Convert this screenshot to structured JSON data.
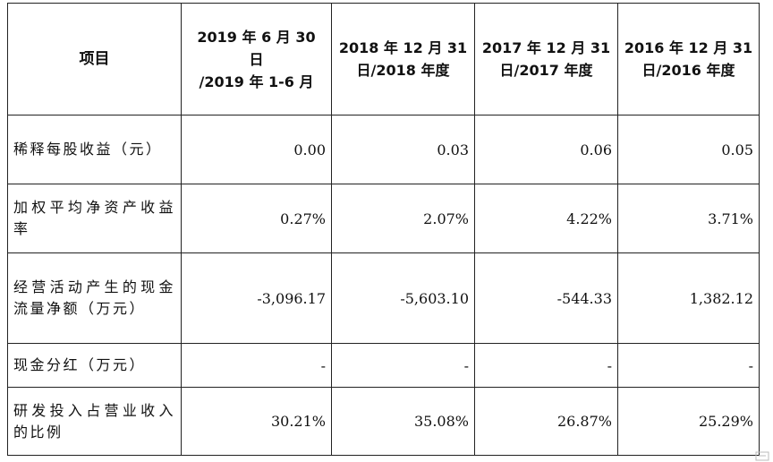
{
  "table": {
    "headers": [
      "项目",
      "2019 年 6 月 30\n日\n/2019 年 1-6 月",
      "2018 年 12 月 31\n日/2018 年度",
      "2017 年 12 月 31\n日/2017 年度",
      "2016 年 12 月 31\n日/2016 年度"
    ],
    "rows": [
      {
        "label": "稀释每股收益（元）",
        "values": [
          "0.00",
          "0.03",
          "0.06",
          "0.05"
        ]
      },
      {
        "label": "加权平均净资产收益率",
        "values": [
          "0.27%",
          "2.07%",
          "4.22%",
          "3.71%"
        ]
      },
      {
        "label": "经营活动产生的现金流量净额（万元）",
        "values": [
          "-3,096.17",
          "-5,603.10",
          "-544.33",
          "1,382.12"
        ]
      },
      {
        "label": "现金分红（万元）",
        "values": [
          "-",
          "-",
          "-",
          "-"
        ]
      },
      {
        "label": "研发投入占营业收入的比例",
        "values": [
          "30.21%",
          "35.08%",
          "26.87%",
          "25.29%"
        ]
      }
    ]
  }
}
